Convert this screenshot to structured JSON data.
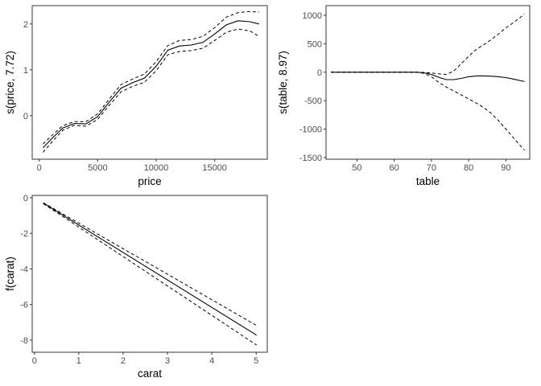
{
  "chart_data": [
    {
      "type": "line",
      "xlabel": "price",
      "ylabel": "s(price, 7.72)",
      "xlim": [
        -600,
        19500
      ],
      "ylim": [
        -0.95,
        2.4
      ],
      "xticks": [
        0,
        5000,
        10000,
        15000
      ],
      "xtick_labels": [
        "0",
        "5000",
        "10000",
        "15000"
      ],
      "yticks": [
        0,
        1,
        2
      ],
      "ytick_labels": [
        "0",
        "1",
        "2"
      ],
      "grid": false,
      "series": [
        {
          "role": "fit",
          "style": "solid",
          "x": [
            330,
            1000,
            2000,
            3000,
            4000,
            5000,
            6000,
            7000,
            8000,
            9000,
            10000,
            11000,
            12000,
            13000,
            14000,
            15000,
            16000,
            17000,
            18000,
            18800
          ],
          "y": [
            -0.7,
            -0.52,
            -0.27,
            -0.17,
            -0.18,
            -0.02,
            0.3,
            0.6,
            0.72,
            0.82,
            1.08,
            1.43,
            1.52,
            1.54,
            1.6,
            1.78,
            1.98,
            2.07,
            2.05,
            2.0
          ]
        },
        {
          "role": "upper",
          "style": "dashed",
          "x": [
            330,
            1000,
            2000,
            3000,
            4000,
            5000,
            6000,
            7000,
            8000,
            9000,
            10000,
            11000,
            12000,
            13000,
            14000,
            15000,
            16000,
            17000,
            18000,
            18800
          ],
          "y": [
            -0.62,
            -0.45,
            -0.22,
            -0.13,
            -0.13,
            0.04,
            0.37,
            0.68,
            0.8,
            0.91,
            1.18,
            1.53,
            1.64,
            1.66,
            1.73,
            1.92,
            2.15,
            2.25,
            2.27,
            2.26
          ]
        },
        {
          "role": "lower",
          "style": "dashed",
          "x": [
            330,
            1000,
            2000,
            3000,
            4000,
            5000,
            6000,
            7000,
            8000,
            9000,
            10000,
            11000,
            12000,
            13000,
            14000,
            15000,
            16000,
            17000,
            18000,
            18800
          ],
          "y": [
            -0.8,
            -0.6,
            -0.32,
            -0.21,
            -0.23,
            -0.08,
            0.23,
            0.52,
            0.64,
            0.73,
            0.98,
            1.33,
            1.4,
            1.42,
            1.47,
            1.64,
            1.82,
            1.89,
            1.85,
            1.73
          ]
        }
      ]
    },
    {
      "type": "line",
      "xlabel": "table",
      "ylabel": "s(table, 8.97)",
      "xlim": [
        41.7,
        96.4
      ],
      "ylim": [
        -1530,
        1170
      ],
      "xticks": [
        50,
        60,
        70,
        80,
        90
      ],
      "xtick_labels": [
        "50",
        "60",
        "70",
        "80",
        "90"
      ],
      "yticks": [
        1000,
        500,
        0,
        -500,
        -1000,
        -1500
      ],
      "ytick_labels": [
        "1000",
        "500",
        "0",
        "-500",
        "-1000",
        "-1500"
      ],
      "grid": false,
      "series": [
        {
          "role": "fit",
          "style": "solid",
          "x": [
            43,
            50,
            60,
            66,
            68,
            70,
            72,
            74,
            76,
            78,
            80,
            82,
            84,
            86,
            88,
            90,
            92,
            94,
            95
          ],
          "y": [
            0,
            0,
            0,
            0,
            -10,
            -40,
            -90,
            -130,
            -130,
            -110,
            -80,
            -65,
            -65,
            -70,
            -80,
            -95,
            -120,
            -150,
            -165
          ]
        },
        {
          "role": "upper",
          "style": "dashed",
          "x": [
            43,
            50,
            60,
            66,
            68,
            70,
            72,
            74,
            76,
            78,
            80,
            82,
            84,
            86,
            88,
            90,
            92,
            94,
            95
          ],
          "y": [
            0,
            0,
            0,
            0,
            -5,
            -15,
            -30,
            -40,
            20,
            150,
            280,
            400,
            480,
            570,
            670,
            780,
            870,
            970,
            1020
          ]
        },
        {
          "role": "lower",
          "style": "dashed",
          "x": [
            43,
            50,
            60,
            66,
            68,
            70,
            72,
            74,
            76,
            78,
            80,
            82,
            84,
            86,
            88,
            90,
            92,
            94,
            95
          ],
          "y": [
            0,
            0,
            0,
            0,
            -20,
            -80,
            -180,
            -260,
            -330,
            -400,
            -470,
            -540,
            -620,
            -720,
            -850,
            -1000,
            -1150,
            -1300,
            -1370
          ]
        }
      ]
    },
    {
      "type": "line",
      "xlabel": "carat",
      "ylabel": "f(carat)",
      "xlim": [
        -0.05,
        5.25
      ],
      "ylim": [
        -8.68,
        0.13
      ],
      "xticks": [
        0,
        1,
        2,
        3,
        4,
        5
      ],
      "xtick_labels": [
        "0",
        "1",
        "2",
        "3",
        "4",
        "5"
      ],
      "yticks": [
        0,
        -2,
        -4,
        -6,
        -8
      ],
      "ytick_labels": [
        "0",
        "-2",
        "-4",
        "-6",
        "-8"
      ],
      "grid": false,
      "series": [
        {
          "role": "fit",
          "style": "solid",
          "x": [
            0.2,
            5.01
          ],
          "y": [
            -0.3,
            -7.72
          ]
        },
        {
          "role": "upper",
          "style": "dashed",
          "x": [
            0.2,
            5.01
          ],
          "y": [
            -0.28,
            -7.18
          ]
        },
        {
          "role": "lower",
          "style": "dashed",
          "x": [
            0.2,
            5.01
          ],
          "y": [
            -0.33,
            -8.28
          ]
        }
      ]
    }
  ]
}
